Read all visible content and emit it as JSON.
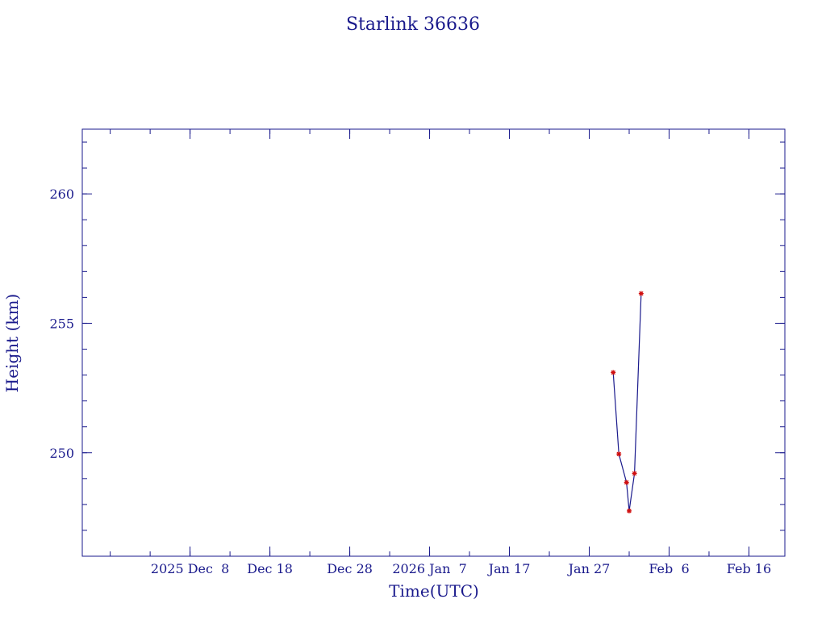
{
  "chart_data": {
    "type": "line",
    "title": "Starlink 36636",
    "xlabel": "Time(UTC)",
    "ylabel": "Height (km)",
    "xlim": [
      "2025-11-24T12:00",
      "2026-02-20T12:00"
    ],
    "ylim": [
      246.0,
      262.5
    ],
    "x_ticks": [
      {
        "date": "2025-12-08",
        "label": "2025 Dec  8"
      },
      {
        "date": "2025-12-18",
        "label": "Dec 18"
      },
      {
        "date": "2025-12-28",
        "label": "Dec 28"
      },
      {
        "date": "2026-01-07",
        "label": "2026 Jan  7"
      },
      {
        "date": "2026-01-17",
        "label": "Jan 17"
      },
      {
        "date": "2026-01-27",
        "label": "Jan 27"
      },
      {
        "date": "2026-02-06",
        "label": "Feb  6"
      },
      {
        "date": "2026-02-16",
        "label": "Feb 16"
      }
    ],
    "y_ticks": [
      {
        "value": 250,
        "label": "250"
      },
      {
        "value": 255,
        "label": "255"
      },
      {
        "value": 260,
        "label": "260"
      }
    ],
    "y_minor_step": 1,
    "x_minor_step_days": 5,
    "grid": false,
    "series": [
      {
        "color": "#d01010",
        "line_color": "#1a1a8c",
        "marker": "asterisk",
        "points": [
          {
            "x": "2026-01-30T00:00",
            "y": 253.1
          },
          {
            "x": "2026-01-30T17:00",
            "y": 249.95
          },
          {
            "x": "2026-01-31T16:00",
            "y": 248.85
          },
          {
            "x": "2026-02-01T00:00",
            "y": 247.75
          },
          {
            "x": "2026-02-01T16:00",
            "y": 249.2
          },
          {
            "x": "2026-02-02T12:00",
            "y": 256.15
          }
        ]
      }
    ]
  }
}
